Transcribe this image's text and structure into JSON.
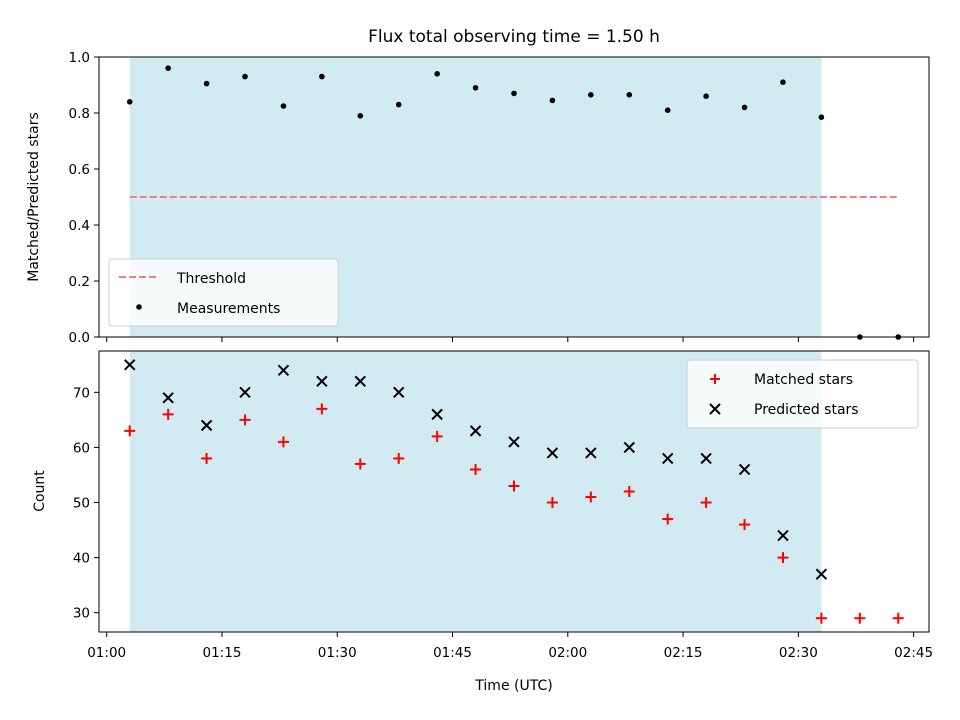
{
  "chart_data": [
    {
      "type": "scatter",
      "title": "Flux total observing time = 1.50 h",
      "xlabel": "",
      "ylabel": "Matched/Predicted stars",
      "ylim": [
        0.0,
        1.0
      ],
      "yticks": [
        "0.0",
        "0.2",
        "0.4",
        "0.6",
        "0.8",
        "1.0"
      ],
      "x_time_range": [
        "00:59",
        "02:47"
      ],
      "xticks": [
        "01:00",
        "01:15",
        "01:30",
        "01:45",
        "02:00",
        "02:15",
        "02:30",
        "02:45"
      ],
      "observing_window": [
        "01:03",
        "02:33"
      ],
      "observing_window_color": "#add8e6",
      "threshold": {
        "name": "Threshold",
        "y": 0.5,
        "x_range": [
          "01:03",
          "02:43"
        ],
        "color": "#f08080"
      },
      "series": [
        {
          "name": "Measurements",
          "color": "#000000",
          "marker": "dot",
          "x": [
            "01:03",
            "01:08",
            "01:13",
            "01:18",
            "01:23",
            "01:28",
            "01:33",
            "01:38",
            "01:43",
            "01:48",
            "01:53",
            "01:58",
            "02:03",
            "02:08",
            "02:13",
            "02:18",
            "02:23",
            "02:28",
            "02:33",
            "02:38",
            "02:43"
          ],
          "y": [
            0.84,
            0.96,
            0.905,
            0.93,
            0.825,
            0.93,
            0.79,
            0.83,
            0.94,
            0.89,
            0.87,
            0.845,
            0.865,
            0.865,
            0.81,
            0.86,
            0.82,
            0.91,
            0.785,
            0.0,
            0.0
          ]
        }
      ],
      "legend": {
        "placement": "lower-left",
        "entries": [
          "Threshold",
          "Measurements"
        ]
      }
    },
    {
      "type": "scatter",
      "title": "",
      "xlabel": "Time (UTC)",
      "ylabel": "Count",
      "ylim": [
        26.5,
        77.5
      ],
      "yticks": [
        "30",
        "40",
        "50",
        "60",
        "70"
      ],
      "x_time_range": [
        "00:59",
        "02:47"
      ],
      "xticks": [
        "01:00",
        "01:15",
        "01:30",
        "01:45",
        "02:00",
        "02:15",
        "02:30",
        "02:45"
      ],
      "observing_window": [
        "01:03",
        "02:33"
      ],
      "observing_window_color": "#add8e6",
      "series": [
        {
          "name": "Matched stars",
          "color": "#ff0000",
          "marker": "plus",
          "x": [
            "01:03",
            "01:08",
            "01:13",
            "01:18",
            "01:23",
            "01:28",
            "01:33",
            "01:38",
            "01:43",
            "01:48",
            "01:53",
            "01:58",
            "02:03",
            "02:08",
            "02:13",
            "02:18",
            "02:23",
            "02:28",
            "02:33",
            "02:38",
            "02:43"
          ],
          "y": [
            63,
            66,
            58,
            65,
            61,
            67,
            57,
            58,
            62,
            56,
            53,
            50,
            51,
            52,
            47,
            50,
            46,
            40,
            29,
            29,
            29
          ]
        },
        {
          "name": "Predicted stars",
          "color": "#000000",
          "marker": "x",
          "x": [
            "01:03",
            "01:08",
            "01:13",
            "01:18",
            "01:23",
            "01:28",
            "01:33",
            "01:38",
            "01:43",
            "01:48",
            "01:53",
            "01:58",
            "02:03",
            "02:08",
            "02:13",
            "02:18",
            "02:23",
            "02:28",
            "02:33"
          ],
          "y": [
            75,
            69,
            64,
            70,
            74,
            72,
            72,
            70,
            66,
            63,
            61,
            59,
            59,
            60,
            58,
            58,
            56,
            44,
            37
          ]
        }
      ],
      "legend": {
        "placement": "top-right",
        "entries": [
          "Matched stars",
          "Predicted stars"
        ]
      }
    }
  ]
}
